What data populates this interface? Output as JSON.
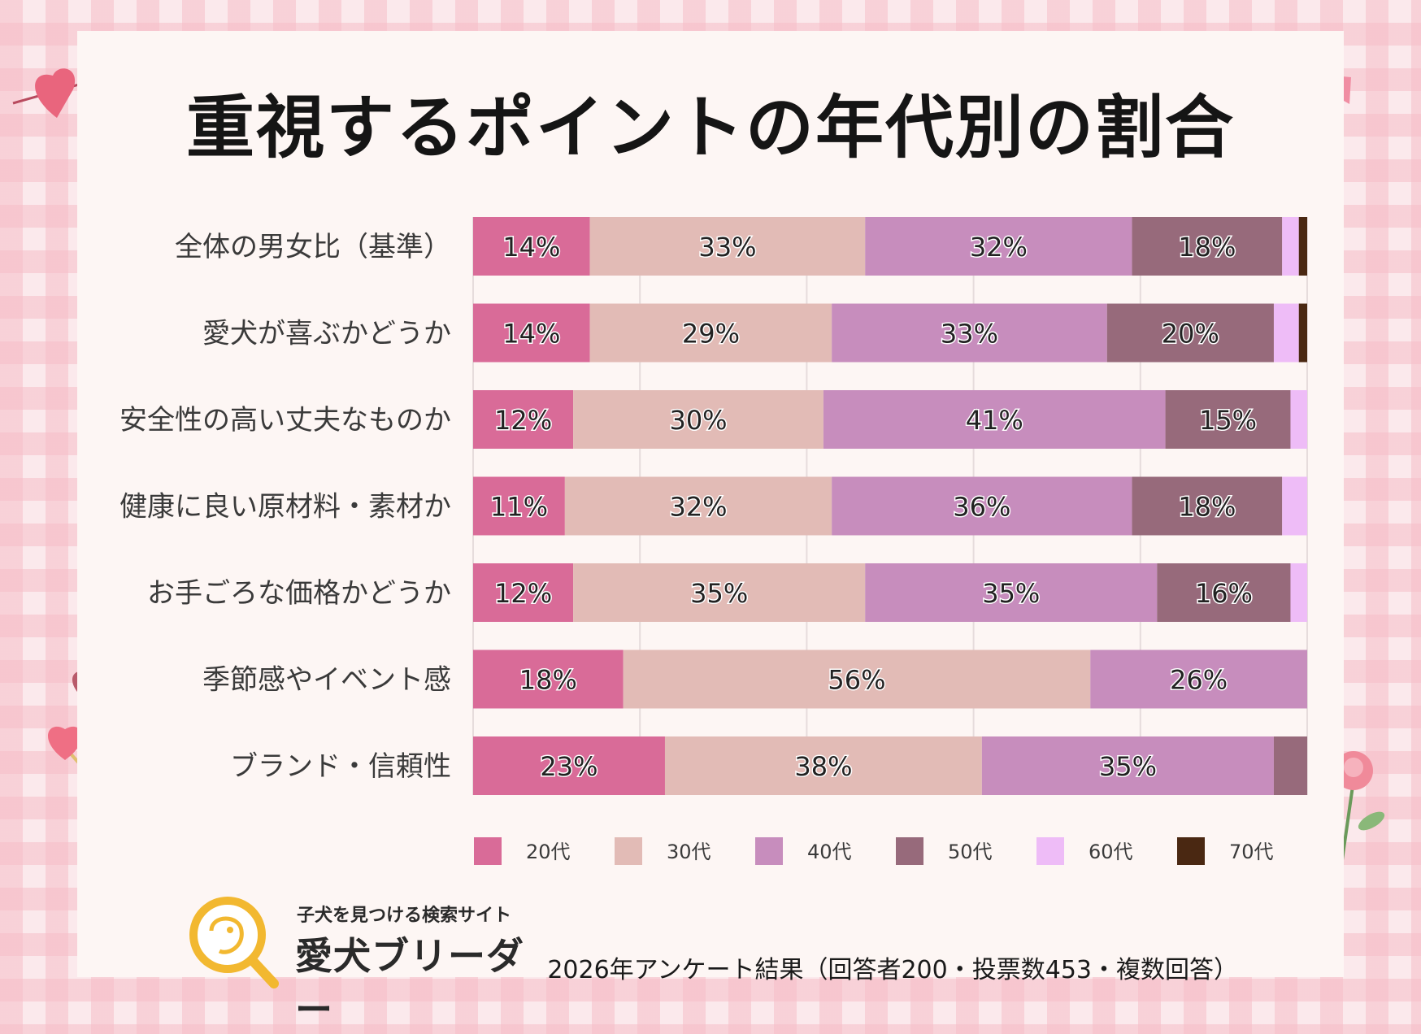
{
  "colors": {
    "20代": "#d96b98",
    "30代": "#e2bbb6",
    "40代": "#c78dbd",
    "50代": "#976a7b",
    "60代": "#eebcf7",
    "70代": "#4a2812"
  },
  "chart_data": {
    "type": "bar",
    "orientation": "horizontal",
    "stacked": true,
    "title": "重視するポイントの年代別の割合",
    "categories": [
      "全体の男女比（基準）",
      "愛犬が喜ぶかどうか",
      "安全性の高い丈夫なものか",
      "健康に良い原材料・素材か",
      "お手ごろな価格かどうか",
      "季節感やイベント感",
      "ブランド・信頼性"
    ],
    "series": [
      {
        "name": "20代",
        "values": [
          14,
          14,
          12,
          11,
          12,
          18,
          23
        ]
      },
      {
        "name": "30代",
        "values": [
          33,
          29,
          30,
          32,
          35,
          56,
          38
        ]
      },
      {
        "name": "40代",
        "values": [
          32,
          33,
          41,
          36,
          35,
          26,
          35
        ]
      },
      {
        "name": "50代",
        "values": [
          18,
          20,
          15,
          18,
          16,
          0,
          4
        ]
      },
      {
        "name": "60代",
        "values": [
          2,
          3,
          2,
          3,
          2,
          0,
          0
        ]
      },
      {
        "name": "70代",
        "values": [
          1,
          1,
          0,
          0,
          0,
          0,
          0
        ]
      }
    ],
    "value_labels": [
      [
        "14%",
        "33%",
        "32%",
        "18%",
        "",
        ""
      ],
      [
        "14%",
        "29%",
        "33%",
        "20%",
        "",
        ""
      ],
      [
        "12%",
        "30%",
        "41%",
        "15%",
        "",
        ""
      ],
      [
        "11%",
        "32%",
        "36%",
        "18%",
        "",
        ""
      ],
      [
        "12%",
        "35%",
        "35%",
        "16%",
        "",
        ""
      ],
      [
        "18%",
        "56%",
        "26%",
        "",
        "",
        ""
      ],
      [
        "23%",
        "38%",
        "35%",
        "",
        "",
        ""
      ]
    ],
    "xlim": [
      0,
      100
    ],
    "grid": true,
    "legend_position": "bottom"
  },
  "logo": {
    "tagline": "子犬を見つける検索サイト",
    "name": "愛犬ブリーダー"
  },
  "footnote": "2026年アンケート結果（回答者200・投票数453・複数回答）"
}
